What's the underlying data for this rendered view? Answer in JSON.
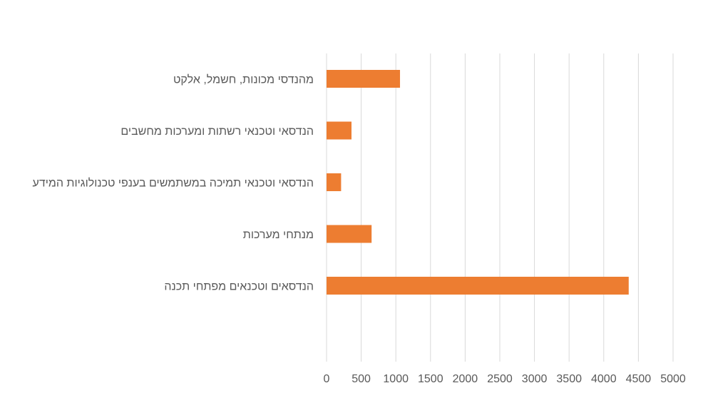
{
  "chart_data": {
    "type": "bar",
    "orientation": "horizontal",
    "title": "",
    "xlabel": "",
    "ylabel": "",
    "categories": [
      "מהנדסי מכונות, חשמל, אלקט",
      "הנדסאי וטכנאי רשתות ומערכות מחשבים",
      "הנדסאי וטכנאי תמיכה במשתמשים בענפי טכנולוגיות המידע",
      "מנתחי מערכות",
      "הנדסאים וטכנאים מפתחי תכנה"
    ],
    "values": [
      1060,
      360,
      210,
      650,
      4360
    ],
    "xlim": [
      0,
      5000
    ],
    "x_ticks": [
      0,
      500,
      1000,
      1500,
      2000,
      2500,
      3000,
      3500,
      4000,
      4500,
      5000
    ],
    "grid": true,
    "legend": "none",
    "colors": {
      "bar": "#ED7D31",
      "grid": "#D9D9D9",
      "text": "#595959"
    }
  }
}
